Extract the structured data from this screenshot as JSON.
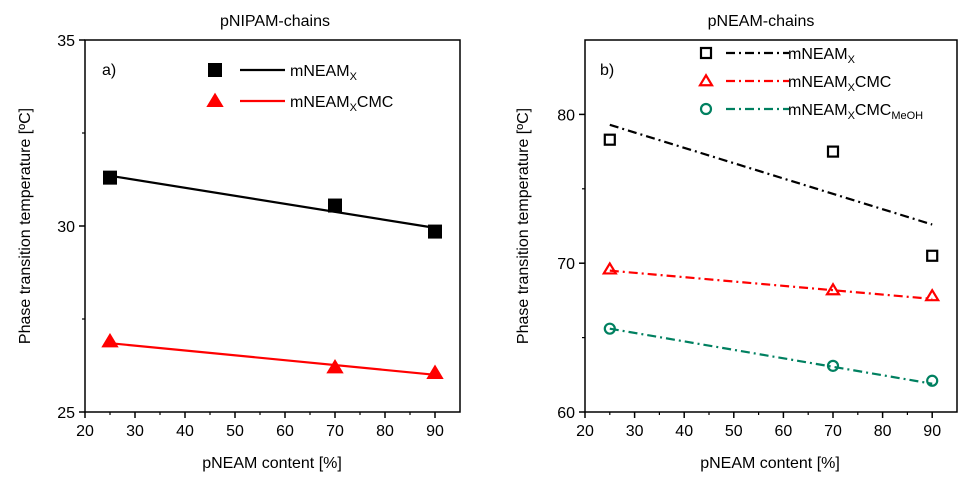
{
  "chart_data": [
    {
      "type": "scatter",
      "title": "pNIPAM-chains",
      "panel_label": "a)",
      "xlabel": "pNEAM content [%]",
      "ylabel": "Phase transition temperature [ºC]",
      "xlim": [
        20,
        95
      ],
      "ylim": [
        25,
        35
      ],
      "xticks": [
        20,
        30,
        40,
        50,
        60,
        70,
        80,
        90
      ],
      "yticks": [
        25,
        30,
        35
      ],
      "legend_position": "top-right",
      "series": [
        {
          "name": "mNEAM",
          "name_sub": "X",
          "name_suffix": "",
          "name_sub2": "",
          "color": "#000000",
          "marker": "square-filled",
          "line": "solid",
          "x": [
            25,
            70,
            90
          ],
          "y": [
            31.3,
            30.55,
            29.85
          ],
          "fit": [
            [
              25,
              31.35
            ],
            [
              90,
              29.95
            ]
          ]
        },
        {
          "name": "mNEAM",
          "name_sub": "X",
          "name_suffix": "CMC",
          "name_sub2": "",
          "color": "#ff0000",
          "marker": "triangle-filled",
          "line": "solid",
          "x": [
            25,
            70,
            90
          ],
          "y": [
            26.9,
            26.2,
            26.05
          ],
          "fit": [
            [
              25,
              26.85
            ],
            [
              90,
              26.0
            ]
          ]
        }
      ]
    },
    {
      "type": "scatter",
      "title": "pNEAM-chains",
      "panel_label": "b)",
      "xlabel": "pNEAM content [%]",
      "ylabel": "Phase transition temperature [ºC]",
      "xlim": [
        20,
        95
      ],
      "ylim": [
        60,
        85
      ],
      "xticks": [
        20,
        30,
        40,
        50,
        60,
        70,
        80,
        90
      ],
      "yticks": [
        60,
        70,
        80
      ],
      "legend_position": "top-right",
      "series": [
        {
          "name": "mNEAM",
          "name_sub": "X",
          "name_suffix": "",
          "name_sub2": "",
          "color": "#000000",
          "marker": "square-open",
          "line": "dashdot",
          "x": [
            25,
            70,
            90
          ],
          "y": [
            78.3,
            77.5,
            70.5
          ],
          "fit": [
            [
              25,
              79.3
            ],
            [
              90,
              72.6
            ]
          ]
        },
        {
          "name": "mNEAM",
          "name_sub": "X",
          "name_suffix": "CMC",
          "name_sub2": "",
          "color": "#ff0000",
          "marker": "triangle-open",
          "line": "dashdot",
          "x": [
            25,
            70,
            90
          ],
          "y": [
            69.6,
            68.2,
            67.8
          ],
          "fit": [
            [
              25,
              69.5
            ],
            [
              90,
              67.6
            ]
          ]
        },
        {
          "name": "mNEAM",
          "name_sub": "X",
          "name_suffix": "CMC",
          "name_sub2": "MeOH",
          "color": "#008060",
          "marker": "circle-open",
          "line": "dashdot",
          "x": [
            25,
            70,
            90
          ],
          "y": [
            65.6,
            63.1,
            62.1
          ],
          "fit": [
            [
              25,
              65.6
            ],
            [
              90,
              61.9
            ]
          ]
        }
      ]
    }
  ]
}
